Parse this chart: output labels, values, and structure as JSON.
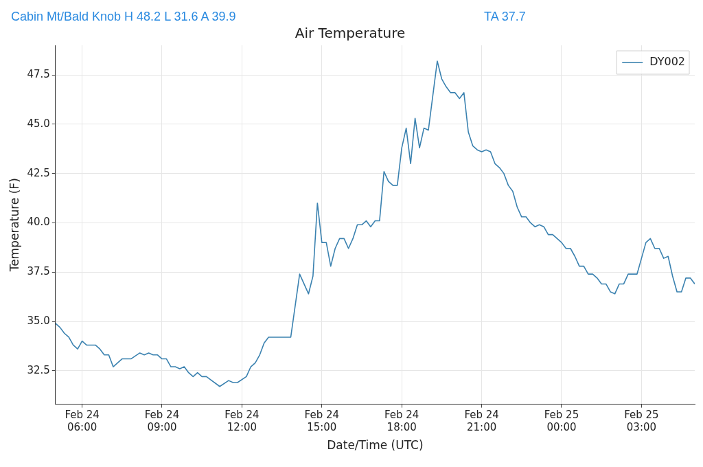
{
  "chart_data": {
    "type": "line",
    "title": "Air Temperature",
    "xlabel": "Date/Time (UTC)",
    "ylabel": "Temperature (F)",
    "annotations": [
      "Cabin Mt/Bald Knob H 48.2 L 31.6 A 39.9",
      "TA 37.7"
    ],
    "xlim": [
      "--02-24T05:00",
      "--02-25T05:00"
    ],
    "xticks": [
      {
        "value": "--02-24T06:00",
        "label": "Feb 24\n06:00"
      },
      {
        "value": "--02-24T09:00",
        "label": "Feb 24\n09:00"
      },
      {
        "value": "--02-24T12:00",
        "label": "Feb 24\n12:00"
      },
      {
        "value": "--02-24T15:00",
        "label": "Feb 24\n15:00"
      },
      {
        "value": "--02-24T18:00",
        "label": "Feb 24\n18:00"
      },
      {
        "value": "--02-24T21:00",
        "label": "Feb 24\n21:00"
      },
      {
        "value": "--02-25T00:00",
        "label": "Feb 25\n00:00"
      },
      {
        "value": "--02-25T03:00",
        "label": "Feb 25\n03:00"
      }
    ],
    "ylim": [
      30.8,
      49.0
    ],
    "yticks": [
      32.5,
      {
        "value": 35,
        "label": "35.0"
      },
      37.5,
      {
        "value": 40,
        "label": "40.0"
      },
      42.5,
      {
        "value": 45,
        "label": "45.0"
      },
      47.5
    ],
    "grid": true,
    "legend": "top right",
    "line_style": "solid",
    "marker": "none",
    "series": [
      {
        "name": "DY002",
        "color": "#3b82b0",
        "x": [
          "--02-24T05:00",
          "--02-24T05:10",
          "--02-24T05:20",
          "--02-24T05:30",
          "--02-24T05:40",
          "--02-24T05:50",
          "--02-24T06:00",
          "--02-24T06:10",
          "--02-24T06:30",
          "--02-24T06:40",
          "--02-24T06:50",
          "--02-24T07:00",
          "--02-24T07:10",
          "--02-24T07:30",
          "--02-24T07:50",
          "--02-24T08:10",
          "--02-24T08:20",
          "--02-24T08:30",
          "--02-24T08:40",
          "--02-24T08:50",
          "--02-24T09:00",
          "--02-24T09:10",
          "--02-24T09:20",
          "--02-24T09:30",
          "--02-24T09:40",
          "--02-24T09:50",
          "--02-24T10:00",
          "--02-24T10:10",
          "--02-24T10:20",
          "--02-24T10:30",
          "--02-24T10:40",
          "--02-24T11:10",
          "--02-24T11:30",
          "--02-24T11:40",
          "--02-24T11:50",
          "--02-24T12:10",
          "--02-24T12:20",
          "--02-24T12:30",
          "--02-24T12:40",
          "--02-24T12:50",
          "--02-24T13:00",
          "--02-24T13:50",
          "--02-24T14:10",
          "--02-24T14:30",
          "--02-24T14:40",
          "--02-24T14:50",
          "--02-24T15:00",
          "--02-24T15:10",
          "--02-24T15:20",
          "--02-24T15:30",
          "--02-24T15:40",
          "--02-24T15:50",
          "--02-24T16:00",
          "--02-24T16:10",
          "--02-24T16:20",
          "--02-24T16:30",
          "--02-24T16:40",
          "--02-24T16:50",
          "--02-24T17:00",
          "--02-24T17:10",
          "--02-24T17:20",
          "--02-24T17:30",
          "--02-24T17:40",
          "--02-24T17:50",
          "--02-24T18:00",
          "--02-24T18:10",
          "--02-24T18:20",
          "--02-24T18:30",
          "--02-24T18:40",
          "--02-24T18:50",
          "--02-24T19:00",
          "--02-24T19:20",
          "--02-24T19:30",
          "--02-24T19:40",
          "--02-24T19:50",
          "--02-24T20:00",
          "--02-24T20:10",
          "--02-24T20:20",
          "--02-24T20:30",
          "--02-24T20:40",
          "--02-24T20:50",
          "--02-24T21:00",
          "--02-24T21:10",
          "--02-24T21:20",
          "--02-24T21:30",
          "--02-24T21:40",
          "--02-24T21:50",
          "--02-24T22:00",
          "--02-24T22:10",
          "--02-24T22:20",
          "--02-24T22:30",
          "--02-24T22:40",
          "--02-24T22:50",
          "--02-24T23:00",
          "--02-24T23:10",
          "--02-24T23:20",
          "--02-24T23:30",
          "--02-24T23:40",
          "--02-24T23:50",
          "--02-25T00:00",
          "--02-25T00:10",
          "--02-25T00:20",
          "--02-25T00:30",
          "--02-25T00:40",
          "--02-25T00:50",
          "--02-25T01:00",
          "--02-25T01:10",
          "--02-25T01:20",
          "--02-25T01:30",
          "--02-25T01:40",
          "--02-25T01:50",
          "--02-25T02:00",
          "--02-25T02:10",
          "--02-25T02:20",
          "--02-25T02:30",
          "--02-25T02:50",
          "--02-25T03:00",
          "--02-25T03:10",
          "--02-25T03:20",
          "--02-25T03:30",
          "--02-25T03:40",
          "--02-25T03:50",
          "--02-25T04:00",
          "--02-25T04:10",
          "--02-25T04:20",
          "--02-25T04:30",
          "--02-25T04:40",
          "--02-25T04:50",
          "--02-25T05:00"
        ],
        "values": [
          34.9,
          34.7,
          34.4,
          34.2,
          33.8,
          33.6,
          34.0,
          33.8,
          33.8,
          33.6,
          33.3,
          33.3,
          32.7,
          33.1,
          33.1,
          33.4,
          33.3,
          33.4,
          33.3,
          33.3,
          33.1,
          33.1,
          32.7,
          32.7,
          32.6,
          32.7,
          32.4,
          32.2,
          32.4,
          32.2,
          32.2,
          31.7,
          32.0,
          31.9,
          31.9,
          32.2,
          32.7,
          32.9,
          33.3,
          33.9,
          34.2,
          34.2,
          37.4,
          36.4,
          37.3,
          41.0,
          39.0,
          39.0,
          37.8,
          38.7,
          39.2,
          39.2,
          38.7,
          39.2,
          39.9,
          39.9,
          40.1,
          39.8,
          40.1,
          40.1,
          42.6,
          42.1,
          41.9,
          41.9,
          43.8,
          44.8,
          43.0,
          45.3,
          43.8,
          44.8,
          44.7,
          48.2,
          47.3,
          46.9,
          46.6,
          46.6,
          46.3,
          46.6,
          44.6,
          43.9,
          43.7,
          43.6,
          43.7,
          43.6,
          43.0,
          42.8,
          42.5,
          41.9,
          41.6,
          40.8,
          40.3,
          40.3,
          40.0,
          39.8,
          39.9,
          39.8,
          39.4,
          39.4,
          39.2,
          39.0,
          38.7,
          38.7,
          38.3,
          37.8,
          37.8,
          37.4,
          37.4,
          37.2,
          36.9,
          36.9,
          36.5,
          36.4,
          36.9,
          36.9,
          37.4,
          37.4,
          38.2,
          39.0,
          39.2,
          38.7,
          38.7,
          38.2,
          38.3,
          37.3,
          36.5,
          36.5,
          37.2,
          37.2,
          36.9
        ]
      }
    ]
  }
}
